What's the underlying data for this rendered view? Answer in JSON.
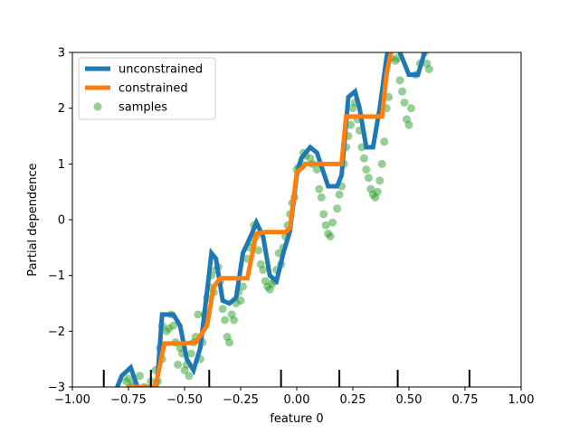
{
  "chart_data": {
    "type": "line",
    "xlabel": "feature 0",
    "ylabel": "Partial dependence",
    "xlim": [
      -1.0,
      1.0
    ],
    "ylim": [
      -3,
      3
    ],
    "x_ticks": [
      -1.0,
      -0.75,
      -0.5,
      -0.25,
      0.0,
      0.25,
      0.5,
      0.75,
      1.0
    ],
    "x_tick_labels": [
      "−1.00",
      "−0.75",
      "−0.50",
      "−0.25",
      "0.00",
      "0.25",
      "0.50",
      "0.75",
      "1.00"
    ],
    "y_ticks": [
      -3,
      -2,
      -1,
      0,
      1,
      2,
      3
    ],
    "y_tick_labels": [
      "−3",
      "−2",
      "−1",
      "0",
      "1",
      "2",
      "3"
    ],
    "grid": false,
    "legend_position": "top-left",
    "series": [
      {
        "name": "unconstrained",
        "color": "#1f77b4",
        "kind": "line",
        "x": [
          -0.85,
          -0.78,
          -0.74,
          -0.71,
          -0.67,
          -0.64,
          -0.62,
          -0.6,
          -0.55,
          -0.52,
          -0.49,
          -0.46,
          -0.43,
          -0.4,
          -0.38,
          -0.36,
          -0.33,
          -0.3,
          -0.27,
          -0.24,
          -0.2,
          -0.18,
          -0.15,
          -0.12,
          -0.09,
          -0.06,
          -0.03,
          0.0,
          0.02,
          0.06,
          0.09,
          0.14,
          0.18,
          0.2,
          0.23,
          0.26,
          0.28,
          0.31,
          0.34,
          0.37,
          0.4,
          0.42,
          0.45,
          0.48,
          0.5,
          0.54,
          0.57,
          0.6
        ],
        "y": [
          -3.5,
          -2.8,
          -2.65,
          -3.0,
          -3.6,
          -3.4,
          -2.8,
          -1.7,
          -1.7,
          -1.9,
          -2.5,
          -2.7,
          -2.3,
          -1.3,
          -0.6,
          -0.7,
          -1.45,
          -1.5,
          -1.4,
          -0.6,
          -0.25,
          -0.05,
          -0.3,
          -1.0,
          -1.1,
          -0.6,
          -0.2,
          0.8,
          1.1,
          1.3,
          1.2,
          0.6,
          0.6,
          0.8,
          2.2,
          2.3,
          2.0,
          1.3,
          1.3,
          2.0,
          2.9,
          3.3,
          3.1,
          2.8,
          2.6,
          2.6,
          3.0,
          3.3
        ]
      },
      {
        "name": "constrained",
        "color": "#ff7f0e",
        "kind": "line",
        "x": [
          -0.85,
          -0.75,
          -0.75,
          -0.63,
          -0.59,
          -0.5,
          -0.45,
          -0.4,
          -0.37,
          -0.34,
          -0.22,
          -0.18,
          -0.14,
          -0.05,
          -0.03,
          0.0,
          0.03,
          0.04,
          0.2,
          0.22,
          0.24,
          0.38,
          0.4,
          0.42,
          0.46
        ],
        "y": [
          -3.5,
          -3.5,
          -3.0,
          -3.0,
          -2.22,
          -2.22,
          -2.2,
          -1.9,
          -1.2,
          -1.05,
          -1.05,
          -0.25,
          -0.22,
          -0.22,
          -0.15,
          0.85,
          0.95,
          1.0,
          1.0,
          1.85,
          1.85,
          1.85,
          2.6,
          3.0,
          3.4
        ]
      },
      {
        "name": "samples",
        "color": "#2ca02c",
        "kind": "scatter",
        "x": [
          -0.76,
          -0.75,
          -0.74,
          -0.73,
          -0.72,
          -0.7,
          -0.69,
          -0.68,
          -0.66,
          -0.65,
          -0.64,
          -0.63,
          -0.62,
          -0.61,
          -0.6,
          -0.6,
          -0.58,
          -0.57,
          -0.56,
          -0.55,
          -0.54,
          -0.53,
          -0.52,
          -0.51,
          -0.5,
          -0.49,
          -0.48,
          -0.47,
          -0.46,
          -0.45,
          -0.44,
          -0.43,
          -0.42,
          -0.41,
          -0.4,
          -0.39,
          -0.38,
          -0.37,
          -0.36,
          -0.35,
          -0.34,
          -0.33,
          -0.32,
          -0.31,
          -0.3,
          -0.29,
          -0.28,
          -0.27,
          -0.26,
          -0.25,
          -0.24,
          -0.22,
          -0.21,
          -0.2,
          -0.19,
          -0.18,
          -0.17,
          -0.16,
          -0.15,
          -0.14,
          -0.13,
          -0.12,
          -0.11,
          -0.1,
          -0.09,
          -0.08,
          -0.07,
          -0.06,
          -0.05,
          -0.04,
          -0.03,
          -0.02,
          -0.01,
          0.0,
          0.01,
          0.02,
          0.03,
          0.04,
          0.06,
          0.07,
          0.09,
          0.1,
          0.11,
          0.12,
          0.13,
          0.14,
          0.15,
          0.16,
          0.18,
          0.19,
          0.2,
          0.21,
          0.22,
          0.23,
          0.24,
          0.25,
          0.26,
          0.27,
          0.28,
          0.29,
          0.3,
          0.31,
          0.32,
          0.33,
          0.34,
          0.35,
          0.36,
          0.37,
          0.38,
          0.39,
          0.4,
          0.41,
          0.42,
          0.44,
          0.45,
          0.46,
          0.47,
          0.48,
          0.49,
          0.5,
          0.51,
          0.53,
          0.55,
          0.57,
          0.58,
          0.59
        ],
        "y": [
          -2.9,
          -2.85,
          -3.0,
          -2.95,
          -3.1,
          -2.8,
          -3.2,
          -3.0,
          -3.2,
          -2.9,
          -3.1,
          -2.7,
          -2.9,
          -2.3,
          -2.5,
          -1.9,
          -2.0,
          -1.95,
          -1.7,
          -1.9,
          -2.2,
          -2.6,
          -2.3,
          -2.4,
          -2.7,
          -2.6,
          -2.8,
          -2.4,
          -2.2,
          -2.1,
          -1.7,
          -2.5,
          -2.2,
          -1.7,
          -1.4,
          -1.2,
          -1.0,
          -1.3,
          -0.9,
          -0.85,
          -1.1,
          -1.6,
          -1.8,
          -2.1,
          -2.2,
          -1.7,
          -1.8,
          -1.5,
          -1.3,
          -1.45,
          -1.2,
          -0.7,
          -0.5,
          -0.4,
          -0.1,
          -0.3,
          -0.55,
          -0.8,
          -0.9,
          -1.1,
          -1.2,
          -1.25,
          -1.15,
          -1.1,
          -0.9,
          -0.6,
          -0.8,
          -0.5,
          -0.3,
          -0.1,
          0.1,
          0.3,
          0.4,
          0.9,
          0.95,
          1.0,
          1.2,
          1.15,
          1.1,
          1.0,
          0.9,
          0.55,
          0.4,
          0.1,
          -0.1,
          -0.25,
          -0.3,
          -0.05,
          0.2,
          0.45,
          0.6,
          1.0,
          1.3,
          1.5,
          1.7,
          2.0,
          2.1,
          1.8,
          1.6,
          1.3,
          1.1,
          0.9,
          0.75,
          0.55,
          0.45,
          0.4,
          0.5,
          0.7,
          1.0,
          1.4,
          2.0,
          2.2,
          2.9,
          2.85,
          2.9,
          2.5,
          2.3,
          2.1,
          1.8,
          1.7,
          2.0,
          2.6,
          2.8,
          3.0,
          2.8,
          2.7
        ]
      }
    ],
    "rug_x": [
      -0.86,
      -0.65,
      -0.39,
      -0.07,
      0.19,
      0.45,
      0.77
    ]
  }
}
